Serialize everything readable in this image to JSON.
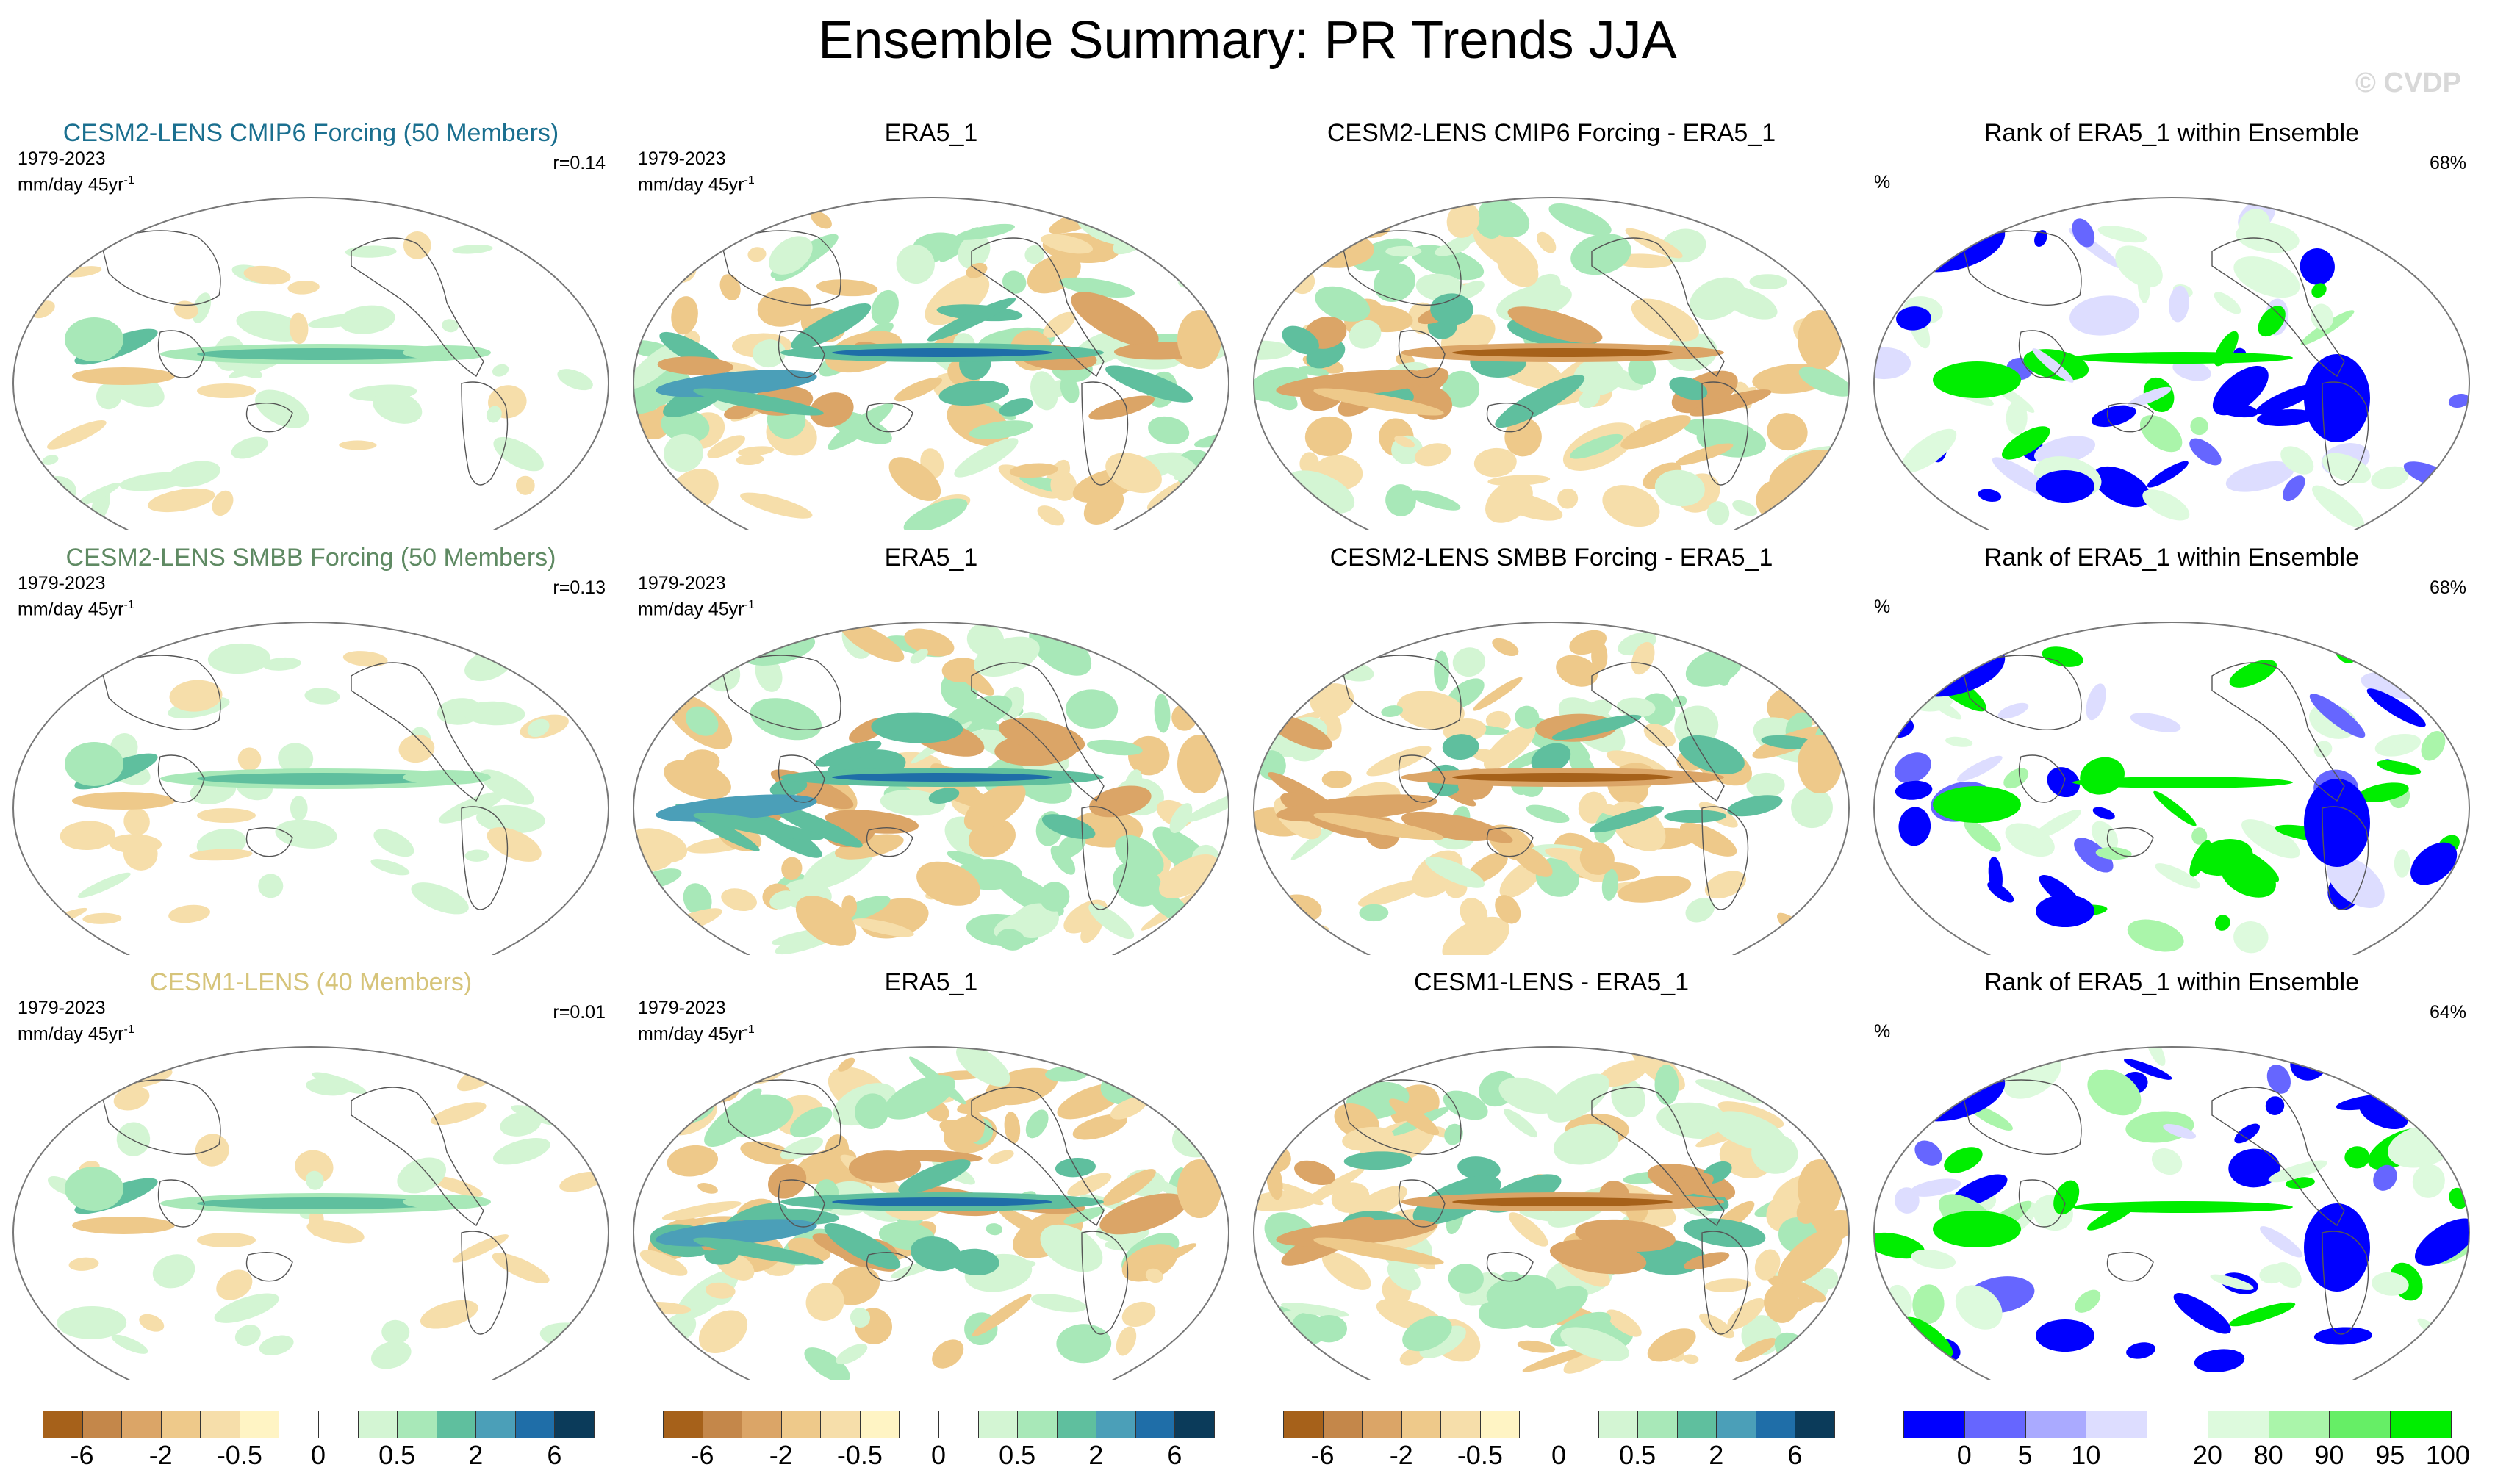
{
  "title": "Ensemble Summary: PR Trends JJA",
  "watermark": "© CVDP",
  "rows": [
    {
      "model_title": "CESM2-LENS CMIP6 Forcing (50 Members)",
      "model_title_color": "#1a6f8f",
      "period": "1979-2023",
      "units": "mm/day 45yr",
      "units_sup": "-1",
      "r": "r=0.14",
      "obs_title": "ERA5_1",
      "diff_title": "CESM2-LENS CMIP6 Forcing - ERA5_1",
      "rank_title": "Rank of ERA5_1 within Ensemble",
      "rank_pct": "68%",
      "rank_unit": "%"
    },
    {
      "model_title": "CESM2-LENS SMBB Forcing (50 Members)",
      "model_title_color": "#5f8a63",
      "period": "1979-2023",
      "units": "mm/day 45yr",
      "units_sup": "-1",
      "r": "r=0.13",
      "obs_title": "ERA5_1",
      "diff_title": "CESM2-LENS SMBB Forcing - ERA5_1",
      "rank_title": "Rank of ERA5_1 within Ensemble",
      "rank_pct": "68%",
      "rank_unit": "%"
    },
    {
      "model_title": "CESM1-LENS (40 Members)",
      "model_title_color": "#d6c47a",
      "period": "1979-2023",
      "units": "mm/day 45yr",
      "units_sup": "-1",
      "r": "r=0.01",
      "obs_title": "ERA5_1",
      "diff_title": "CESM1-LENS - ERA5_1",
      "rank_title": "Rank of ERA5_1 within Ensemble",
      "rank_pct": "64%",
      "rank_unit": "%"
    }
  ],
  "colorbars": {
    "trend": {
      "colors": [
        "#a6611a",
        "#c4874a",
        "#dba567",
        "#eec98a",
        "#f6deaa",
        "#fff4c4",
        "#ffffff",
        "#ffffff",
        "#d3f5d3",
        "#a8e8b8",
        "#5fbf9e",
        "#4b9fb8",
        "#1f6ea8",
        "#0b3b5a"
      ],
      "labels": [
        "-6",
        "-2",
        "-0.5",
        "0",
        "0.5",
        "2",
        "6"
      ]
    },
    "rank": {
      "colors": [
        "#0000ff",
        "#6666ff",
        "#aaaaff",
        "#ddddff",
        "#ffffff",
        "#ddfadd",
        "#aaf5aa",
        "#66ee66",
        "#00ee00"
      ],
      "labels": [
        "0",
        "5",
        "10",
        "20",
        "80",
        "90",
        "95",
        "100"
      ]
    }
  }
}
